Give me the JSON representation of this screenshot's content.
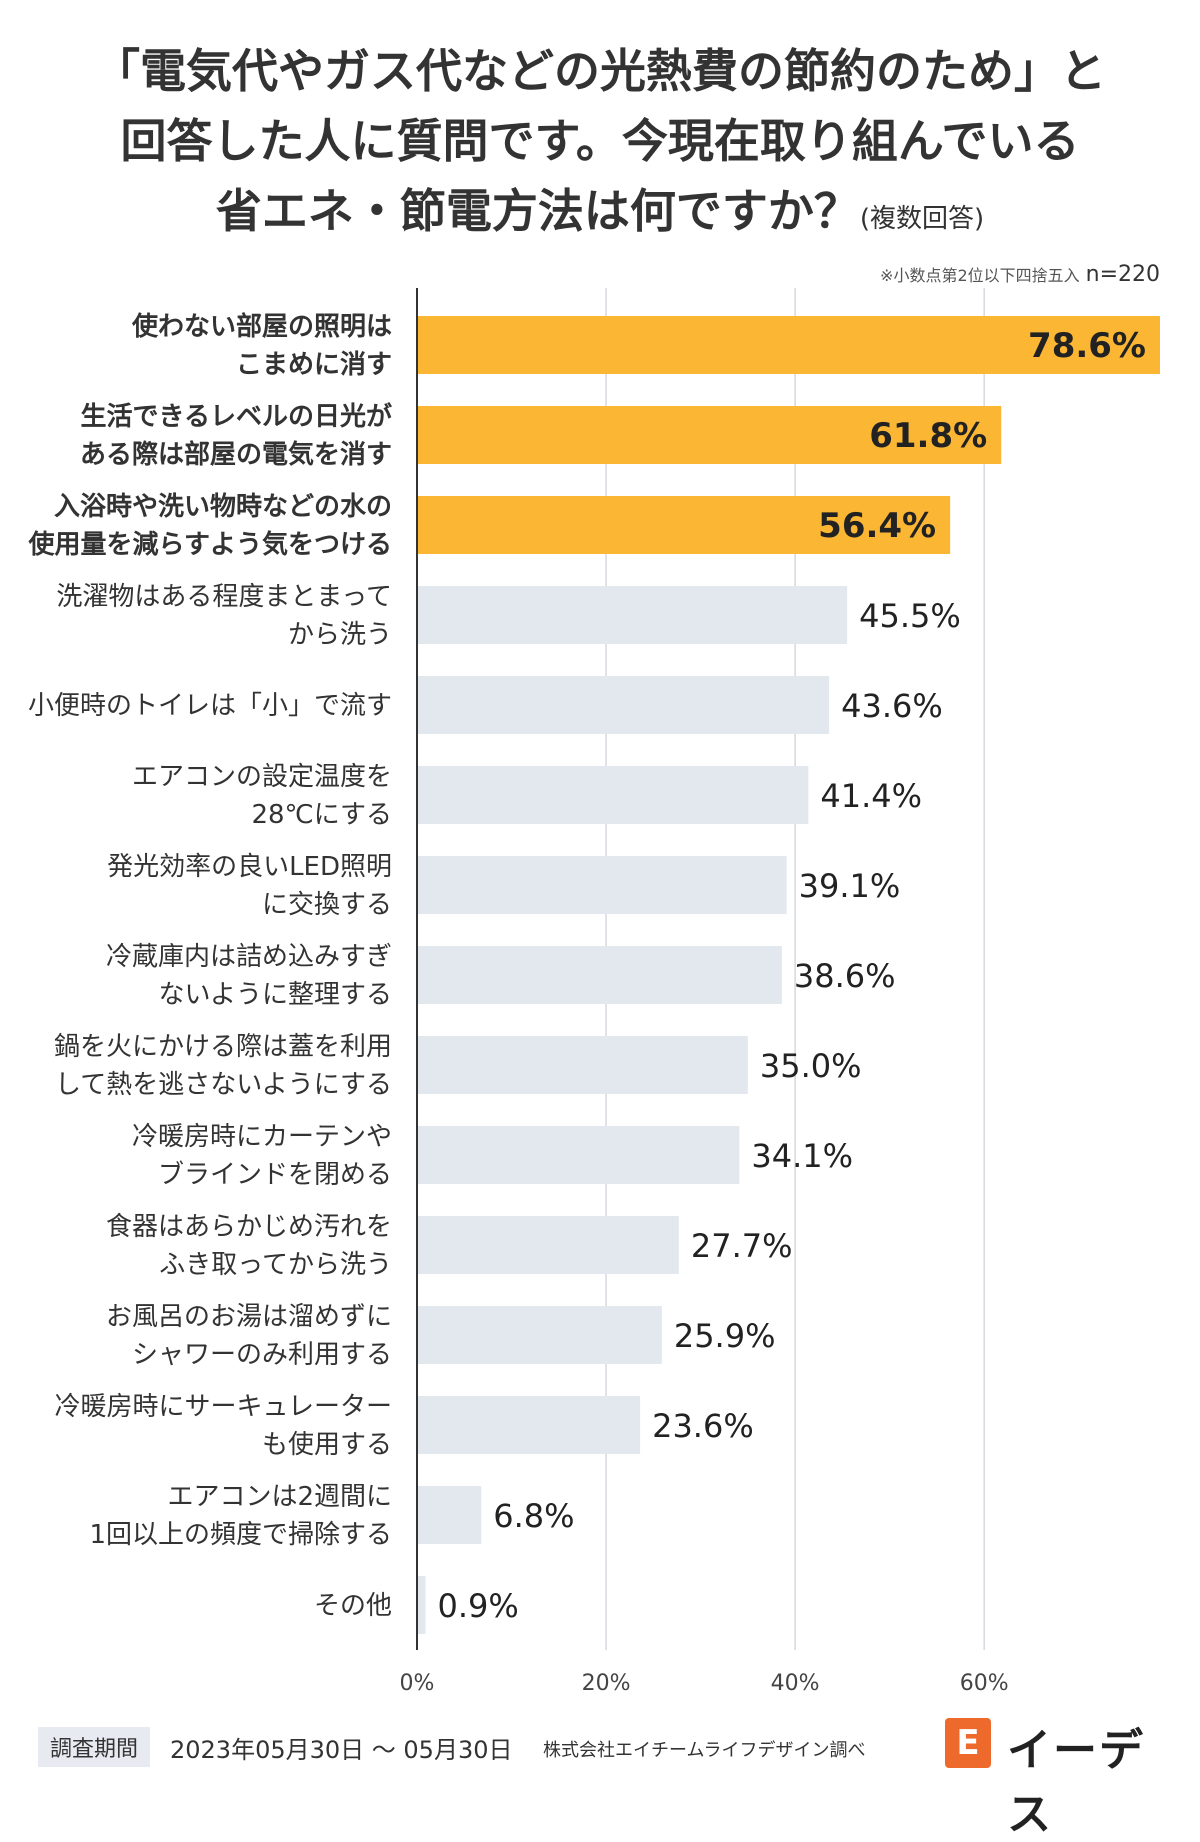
{
  "title": {
    "line1": "「電気代やガス代などの光熱費の節約のため」と",
    "line2": "回答した人に質問です。今現在取り組んでいる",
    "line3": "省エネ・節電方法は何ですか？",
    "suffix": "(複数回答)"
  },
  "note": {
    "rounding": "※小数点第2位以下四捨五入",
    "n": "n=220"
  },
  "chart_data": {
    "type": "bar",
    "orientation": "horizontal",
    "categories": [
      [
        "使わない部屋の照明は",
        "こまめに消す"
      ],
      [
        "生活できるレベルの日光が",
        "ある際は部屋の電気を消す"
      ],
      [
        "入浴時や洗い物時などの水の",
        "使用量を減らすよう気をつける"
      ],
      [
        "洗濯物はある程度まとまって",
        "から洗う"
      ],
      [
        "小便時のトイレは「小」で流す"
      ],
      [
        "エアコンの設定温度を",
        "28℃にする"
      ],
      [
        "発光効率の良いLED照明",
        "に交換する"
      ],
      [
        "冷蔵庫内は詰め込みすぎ",
        "ないように整理する"
      ],
      [
        "鍋を火にかける際は蓋を利用",
        "して熱を逃さないようにする"
      ],
      [
        "冷暖房時にカーテンや",
        "ブラインドを閉める"
      ],
      [
        "食器はあらかじめ汚れを",
        "ふき取ってから洗う"
      ],
      [
        "お風呂のお湯は溜めずに",
        "シャワーのみ利用する"
      ],
      [
        "冷暖房時にサーキュレーター",
        "も使用する"
      ],
      [
        "エアコンは2週間に",
        "1回以上の頻度で掃除する"
      ],
      [
        "その他"
      ]
    ],
    "values": [
      78.6,
      61.8,
      56.4,
      45.5,
      43.6,
      41.4,
      39.1,
      38.6,
      35.0,
      34.1,
      27.7,
      25.9,
      23.6,
      6.8,
      0.9
    ],
    "value_labels": [
      "78.6%",
      "61.8%",
      "56.4%",
      "45.5%",
      "43.6%",
      "41.4%",
      "39.1%",
      "38.6%",
      "35.0%",
      "34.1%",
      "27.7%",
      "25.9%",
      "23.6%",
      "6.8%",
      "0.9%"
    ],
    "highlight_top": 3,
    "xlim": [
      0,
      78.6
    ],
    "ticks": [
      0,
      20,
      40,
      60
    ],
    "tick_labels": [
      "0%",
      "20%",
      "40%",
      "60%"
    ],
    "colors": {
      "highlight": "#fbb733",
      "normal": "#e3e8ef",
      "grid": "#d5d9de",
      "axis": "#333333"
    }
  },
  "footer": {
    "label": "調査期間",
    "period": "2023年05月30日 〜 05月30日",
    "company": "株式会社エイチームライフデザイン調べ"
  },
  "logo": {
    "mark": "E",
    "text": "イーデス"
  }
}
